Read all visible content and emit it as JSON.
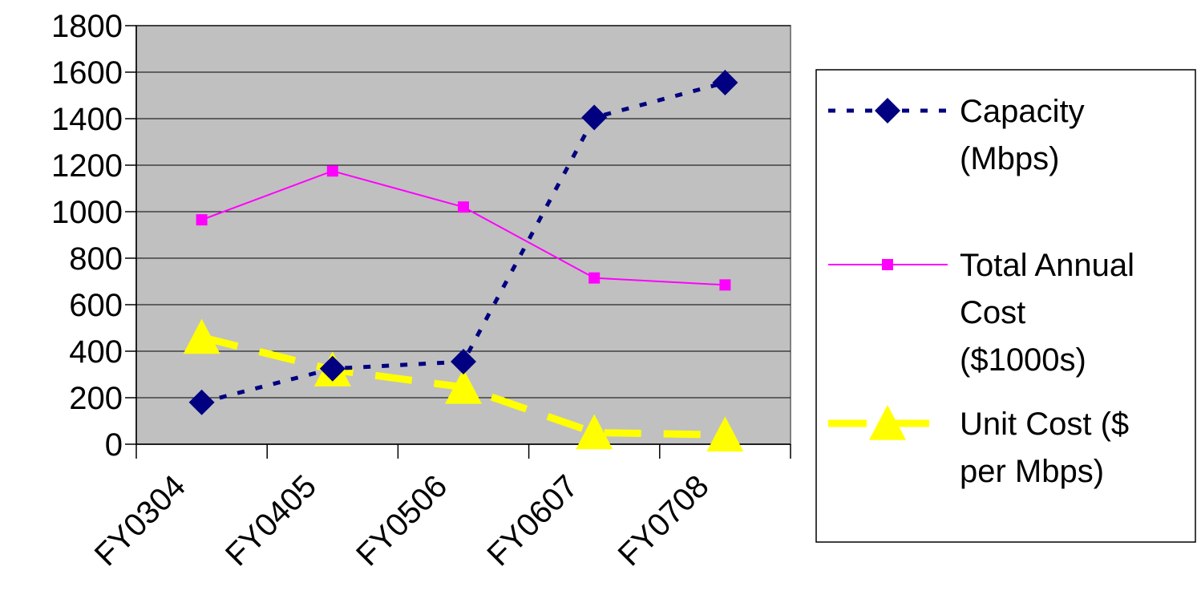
{
  "chart_data": {
    "type": "line",
    "categories": [
      "FY0304",
      "FY0405",
      "FY0506",
      "FY0607",
      "FY0708"
    ],
    "ylim": [
      0,
      1800
    ],
    "yticks": [
      0,
      200,
      400,
      600,
      800,
      1000,
      1200,
      1400,
      1600,
      1800
    ],
    "grid": true,
    "legend_position": "right",
    "plot_background": "#c0c0c0",
    "series": [
      {
        "name": "Capacity (Mbps)",
        "legend_lines": [
          "Capacity",
          "(Mbps)"
        ],
        "values": [
          180,
          325,
          355,
          1405,
          1555
        ],
        "color": "#000080",
        "marker": "diamond",
        "line_style": "dotted"
      },
      {
        "name": "Total Annual Cost ($1000s)",
        "legend_lines": [
          "Total Annual",
          "Cost",
          "($1000s)"
        ],
        "values": [
          965,
          1175,
          1020,
          715,
          685
        ],
        "color": "#ff00ff",
        "marker": "square",
        "line_style": "solid"
      },
      {
        "name": "Unit Cost ($ per Mbps)",
        "legend_lines": [
          "Unit Cost ($",
          "per Mbps)"
        ],
        "values": [
          460,
          320,
          245,
          50,
          40
        ],
        "color": "#ffff00",
        "marker": "triangle",
        "line_style": "dashed"
      }
    ]
  }
}
